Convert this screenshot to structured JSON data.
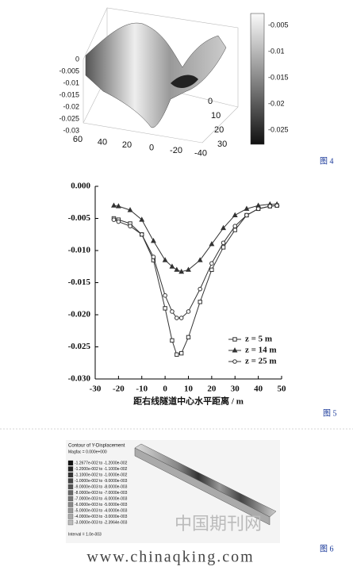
{
  "figure4": {
    "z_ticks": [
      "0",
      "-0.005",
      "-0.01",
      "-0.015",
      "-0.02",
      "-0.025",
      "-0.03"
    ],
    "x_ticks": [
      "60",
      "40",
      "20",
      "0",
      "-20",
      "-40"
    ],
    "y_ticks": [
      "0",
      "10",
      "20",
      "30"
    ],
    "colorbar_ticks": [
      "-0.005",
      "-0.01",
      "-0.015",
      "-0.02",
      "-0.025"
    ],
    "caption": "图 4"
  },
  "figure5": {
    "chart_data": {
      "type": "line",
      "x_label": "距右线隧道中心水平距离 / m",
      "x": [
        -22,
        -20,
        -15,
        -10,
        -5,
        0,
        3,
        5,
        7,
        10,
        15,
        20,
        25,
        30,
        35,
        40,
        45,
        48
      ],
      "series": [
        {
          "name": "z = 5 m",
          "color": "#333333",
          "marker": "square",
          "values": [
            -0.005,
            -0.0052,
            -0.0058,
            -0.0075,
            -0.0115,
            -0.019,
            -0.024,
            -0.0262,
            -0.026,
            -0.0235,
            -0.018,
            -0.013,
            -0.0095,
            -0.0068,
            -0.0045,
            -0.0035,
            -0.0031,
            -0.003
          ]
        },
        {
          "name": "z = 14 m",
          "color": "#333333",
          "marker": "triangle",
          "values": [
            -0.003,
            -0.0031,
            -0.0037,
            -0.0052,
            -0.0085,
            -0.0115,
            -0.0125,
            -0.013,
            -0.0133,
            -0.013,
            -0.0115,
            -0.009,
            -0.0065,
            -0.0045,
            -0.0035,
            -0.003,
            -0.0028,
            -0.0028
          ]
        },
        {
          "name": "z = 25 m",
          "color": "#333333",
          "marker": "circle",
          "values": [
            -0.0052,
            -0.0055,
            -0.0062,
            -0.0075,
            -0.011,
            -0.017,
            -0.0195,
            -0.0205,
            -0.0205,
            -0.0195,
            -0.016,
            -0.012,
            -0.0088,
            -0.0062,
            -0.0045,
            -0.0035,
            -0.0031,
            -0.003
          ]
        }
      ],
      "xlim": [
        -30,
        50
      ],
      "xticks": [
        -30,
        -20,
        -10,
        0,
        10,
        20,
        30,
        40,
        50
      ],
      "ylim": [
        -0.03,
        0
      ],
      "yticks": [
        {
          "value": 0,
          "label": "0.000"
        },
        {
          "value": -0.005,
          "label": "-0.005"
        },
        {
          "value": -0.01,
          "label": "-0.010"
        },
        {
          "value": -0.015,
          "label": "-0.015"
        },
        {
          "value": -0.02,
          "label": "-0.020"
        },
        {
          "value": -0.025,
          "label": "-0.025"
        },
        {
          "value": -0.03,
          "label": "-0.030"
        }
      ],
      "legend": "lower right"
    },
    "caption": "图 5"
  },
  "figure6": {
    "title": "Contour of Y-Displacement",
    "magfac": "Magfac = 0.000e+000",
    "legend": [
      "-1.2677e-002 to -1.2000e-002",
      "-1.2000e-002 to -1.1000e-002",
      "-1.1000e-002 to -1.0000e-002",
      "-1.0000e-002 to -9.0000e-003",
      "-9.0000e-003 to -8.0000e-003",
      "-8.0000e-003 to -7.0000e-003",
      "-7.0000e-003 to -6.0000e-003",
      "-6.0000e-003 to -5.0000e-003",
      "-5.0000e-003 to -4.0000e-003",
      "-4.0000e-003 to -3.0000e-003",
      "-3.0000e-003 to -2.3964e-003"
    ],
    "interval": "Interval = 1.0e-003",
    "watermark": "中国期刊网",
    "url": "www.chinaqking.com",
    "caption": "图 6"
  }
}
